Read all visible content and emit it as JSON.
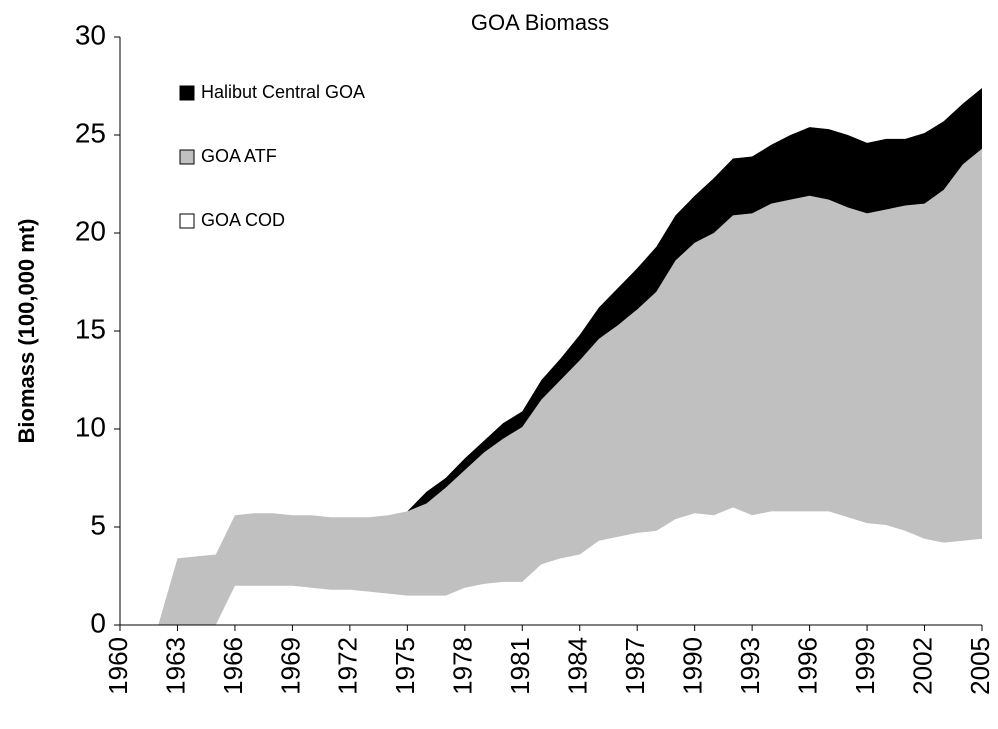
{
  "chart_data": {
    "type": "stacked-area",
    "title": "GOA Biomass",
    "y_label": "Biomass (100,000 mt)",
    "x": [
      1960,
      1961,
      1962,
      1963,
      1964,
      1965,
      1966,
      1967,
      1968,
      1969,
      1970,
      1971,
      1972,
      1973,
      1974,
      1975,
      1976,
      1977,
      1978,
      1979,
      1980,
      1981,
      1982,
      1983,
      1984,
      1985,
      1986,
      1987,
      1988,
      1989,
      1990,
      1991,
      1992,
      1993,
      1994,
      1995,
      1996,
      1997,
      1998,
      1999,
      2000,
      2001,
      2002,
      2003,
      2004,
      2005
    ],
    "xlim": [
      1960,
      2005
    ],
    "xticks": [
      1960,
      1963,
      1966,
      1969,
      1972,
      1975,
      1978,
      1981,
      1984,
      1987,
      1990,
      1993,
      1996,
      1999,
      2002,
      2005
    ],
    "ylim": [
      0,
      30
    ],
    "yticks": [
      0,
      5,
      10,
      15,
      20,
      25,
      30
    ],
    "legend": "top-left",
    "series": [
      {
        "name": "Halibut Central GOA",
        "color": "#000000",
        "values": [
          0,
          0,
          0,
          0,
          0,
          0,
          0,
          0,
          0,
          0,
          0,
          0,
          0,
          0,
          0,
          0,
          0.6,
          0.5,
          0.6,
          0.6,
          0.8,
          0.8,
          1.0,
          1.1,
          1.3,
          1.6,
          1.9,
          2.1,
          2.3,
          2.3,
          2.4,
          2.8,
          2.9,
          2.9,
          3.0,
          3.3,
          3.5,
          3.6,
          3.7,
          3.6,
          3.6,
          3.4,
          3.6,
          3.5,
          3.1,
          3.1
        ]
      },
      {
        "name": "GOA ATF",
        "color": "#c0c0c0",
        "values": [
          0,
          0,
          0,
          3.4,
          3.5,
          3.6,
          3.6,
          3.7,
          3.7,
          3.6,
          3.7,
          3.7,
          3.7,
          3.8,
          4.0,
          4.3,
          4.7,
          5.5,
          6.0,
          6.7,
          7.3,
          7.9,
          8.4,
          9.1,
          9.9,
          10.3,
          10.8,
          11.4,
          12.2,
          13.2,
          13.8,
          14.4,
          14.9,
          15.4,
          15.7,
          15.9,
          16.1,
          15.9,
          15.8,
          15.8,
          16.1,
          16.6,
          17.1,
          18.0,
          19.2,
          19.9
        ]
      },
      {
        "name": "GOA COD",
        "color": "#ffffff",
        "values": [
          0,
          0,
          0,
          0,
          0,
          0,
          2.0,
          2.0,
          2.0,
          2.0,
          1.9,
          1.8,
          1.8,
          1.7,
          1.6,
          1.5,
          1.5,
          1.5,
          1.9,
          2.1,
          2.2,
          2.2,
          3.1,
          3.4,
          3.6,
          4.3,
          4.5,
          4.7,
          4.8,
          5.4,
          5.7,
          5.6,
          6.0,
          5.6,
          5.8,
          5.8,
          5.8,
          5.8,
          5.5,
          5.2,
          5.1,
          4.8,
          4.4,
          4.2,
          4.3,
          4.4
        ]
      }
    ]
  }
}
